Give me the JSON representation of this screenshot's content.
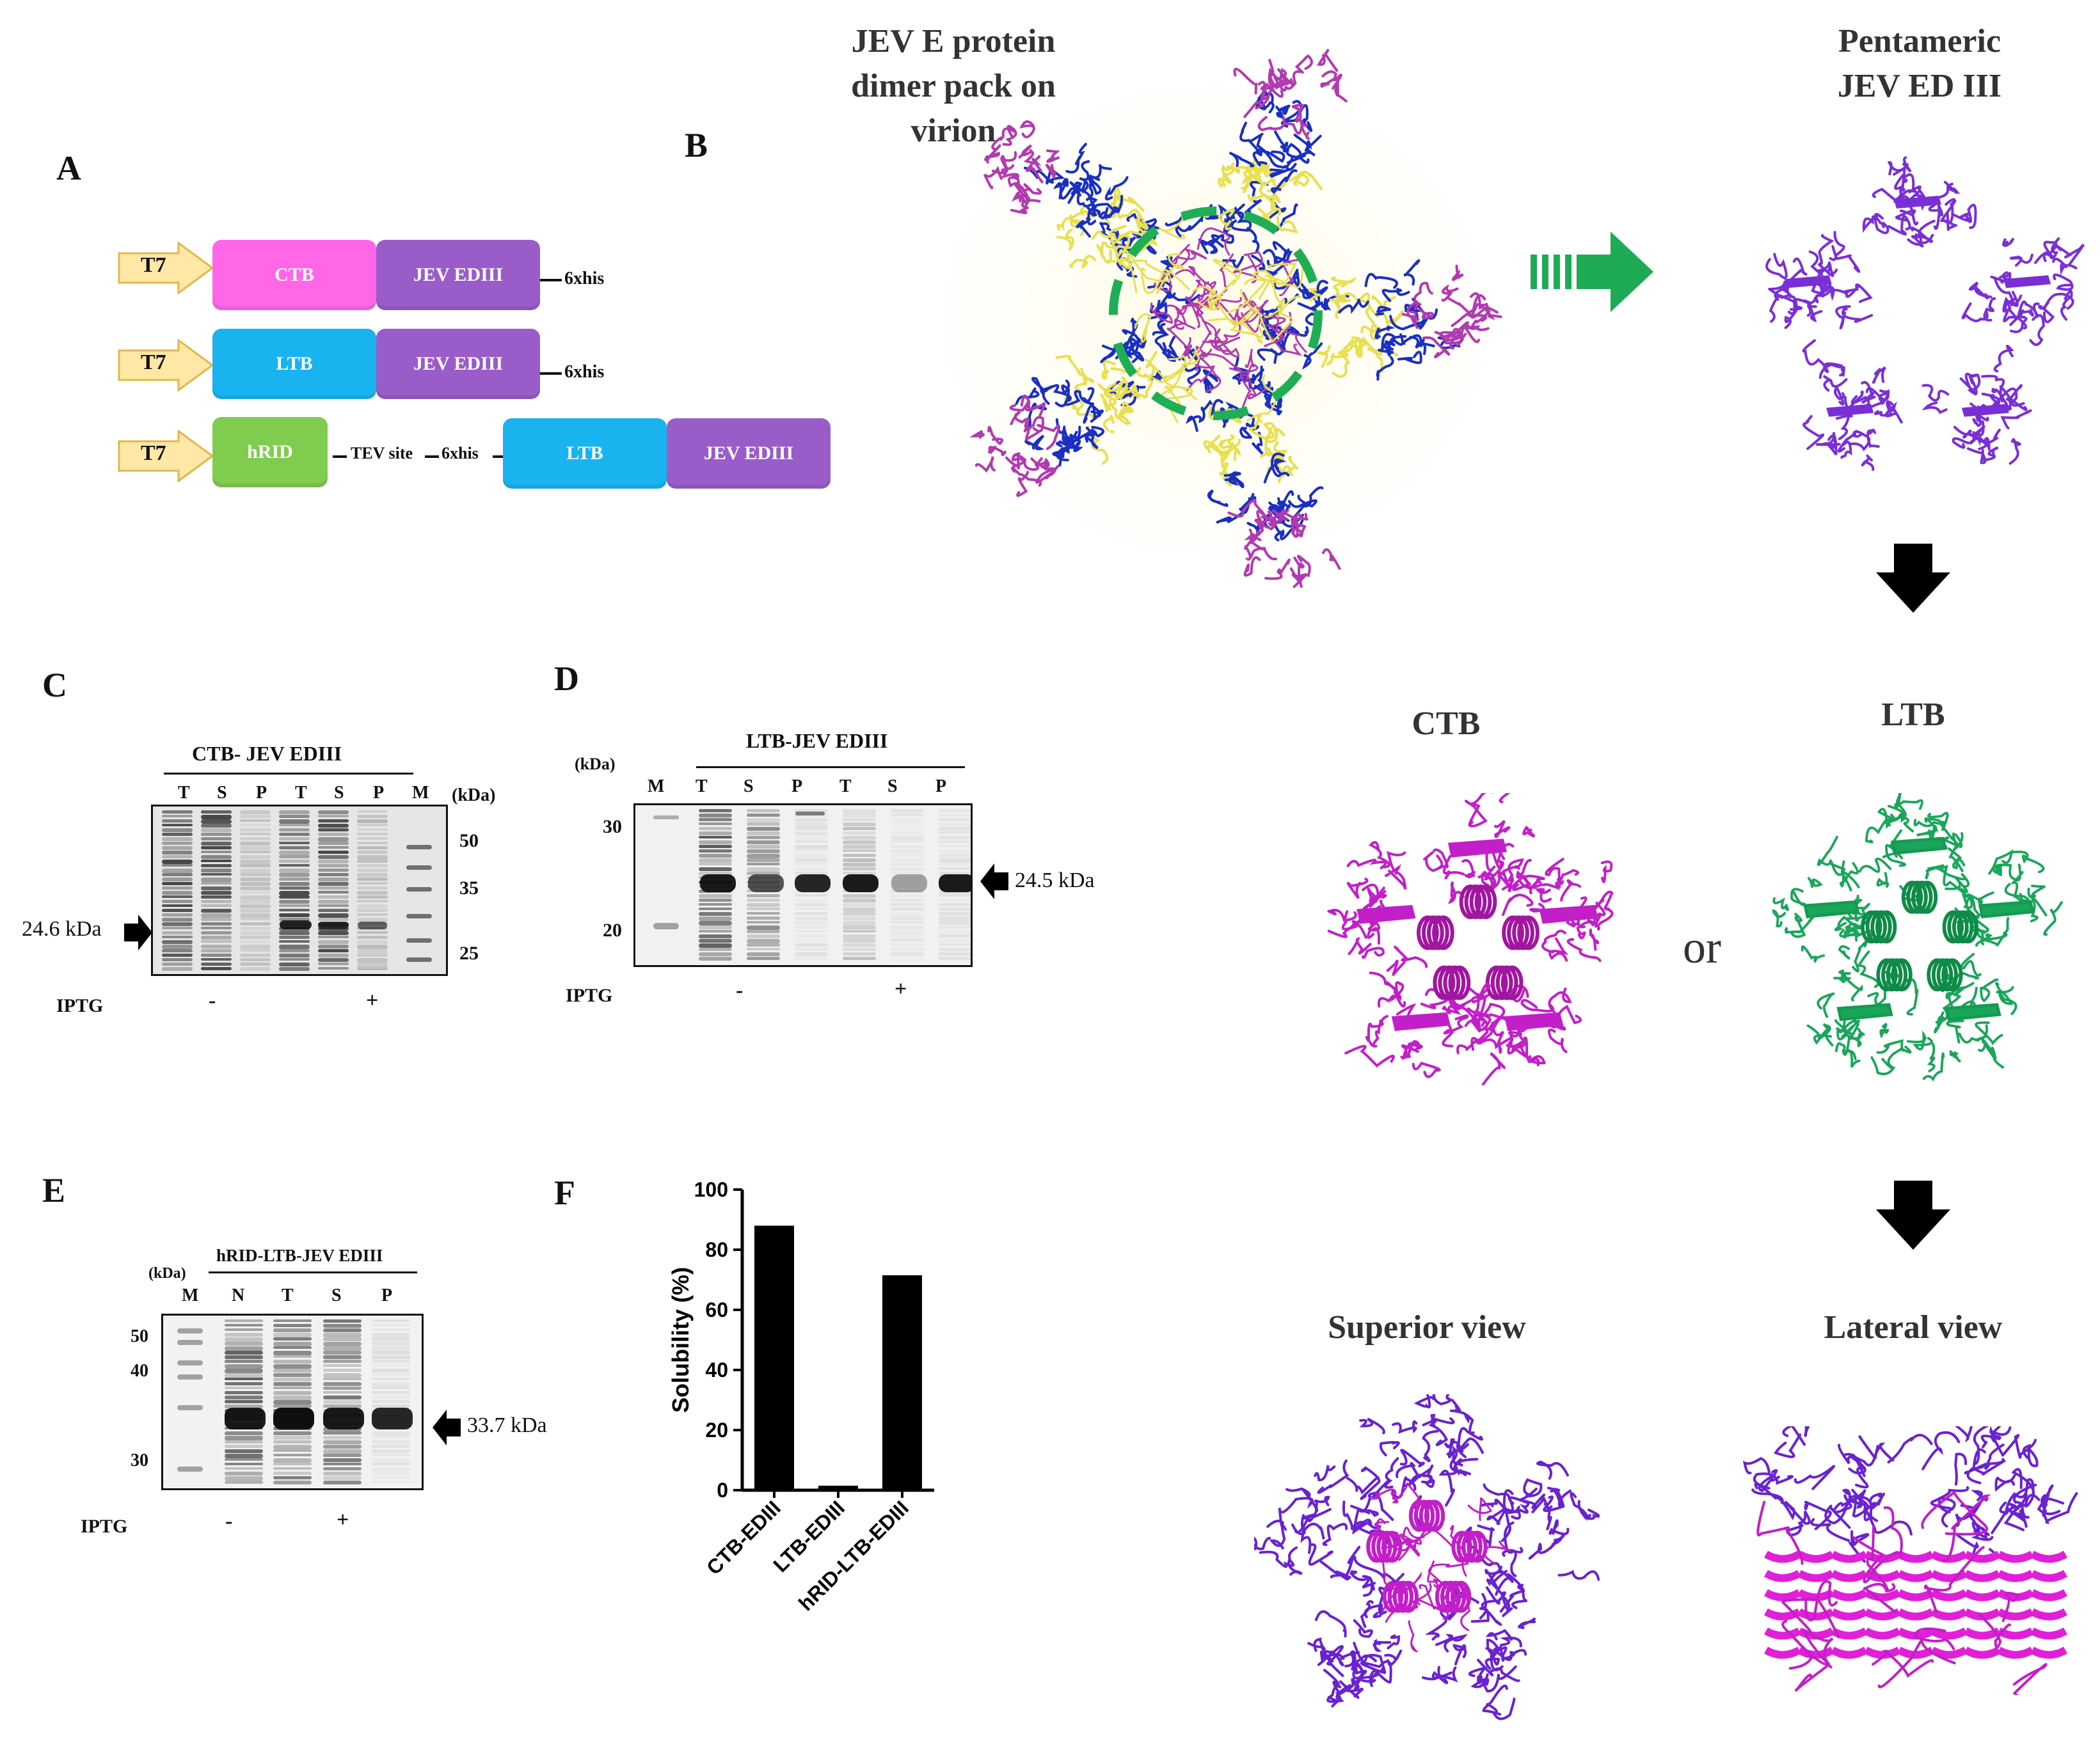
{
  "panels": {
    "a": "A",
    "b": "B",
    "c": "C",
    "d": "D",
    "e": "E",
    "f": "F"
  },
  "constructs": {
    "t7": "T7",
    "row1": {
      "d1": "CTB",
      "d2": "JEV EDIII",
      "tag": "6xhis"
    },
    "row2": {
      "d1": "LTB",
      "d2": "JEV EDIII",
      "tag": "6xhis"
    },
    "row3": {
      "d1": "hRID",
      "tev": "TEV site",
      "his": "6xhis",
      "d2": "LTB",
      "d3": "JEV EDIII"
    }
  },
  "colors": {
    "ctb": "#ff66e8",
    "jev": "#9a5cc9",
    "ltb": "#19b3ef",
    "hrid": "#7fcc4f",
    "t7": "#ffe7a6",
    "green_arrow": "#1faa55"
  },
  "panel_b": {
    "dimer_title": [
      "JEV E protein",
      "dimer pack on",
      "virion"
    ],
    "pentamer_title": [
      "Pentameric",
      "JEV ED III"
    ],
    "ctb": "CTB",
    "ltb": "LTB",
    "or": "or",
    "superior": "Superior view",
    "lateral": "Lateral view"
  },
  "gel_c": {
    "title": "CTB- JEV EDIII",
    "lanes": [
      "T",
      "S",
      "P",
      "T",
      "S",
      "P",
      "M"
    ],
    "unit": "(kDa)",
    "markers": [
      "50",
      "35",
      "25"
    ],
    "arrow": "24.6 kDa",
    "iptg": "IPTG",
    "minus": "-",
    "plus": "+"
  },
  "gel_d": {
    "title": "LTB-JEV EDIII",
    "unit": "(kDa)",
    "lanes": [
      "M",
      "T",
      "S",
      "P",
      "T",
      "S",
      "P"
    ],
    "markers": [
      "30",
      "20"
    ],
    "arrow": "24.5 kDa",
    "iptg": "IPTG",
    "minus": "-",
    "plus": "+"
  },
  "gel_e": {
    "title": "hRID-LTB-JEV EDIII",
    "unit": "(kDa)",
    "lanes": [
      "M",
      "N",
      "T",
      "S",
      "P"
    ],
    "markers": [
      "50",
      "40",
      "30"
    ],
    "arrow": "33.7 kDa",
    "iptg": "IPTG",
    "minus": "-",
    "plus": "+"
  },
  "chart_data": {
    "type": "bar",
    "categories": [
      "CTB-EDIII",
      "LTB-EDIII",
      "hRID-LTB-EDIII"
    ],
    "values": [
      88,
      1.5,
      71.5
    ],
    "ylabel": "Solubility (%)",
    "ylim": [
      0,
      100
    ],
    "yticks": [
      "0",
      "20",
      "40",
      "60",
      "80",
      "100"
    ]
  }
}
